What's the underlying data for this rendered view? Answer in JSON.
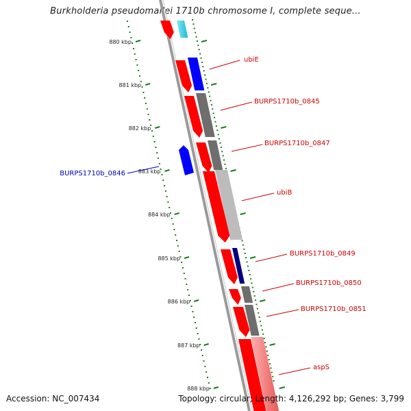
{
  "title": "Burkholderia pseudomallei 1710b chromosome I, complete seque...",
  "accession": "Accession: NC_007434",
  "summary": "Topology: circular; Length: 4,126,292 bp; Genes: 3,799",
  "colors": {
    "forward": "#ff0000",
    "reverse": "#0000ff",
    "label_forward": "#cc0000",
    "label_reverse": "#0000aa",
    "ticks": "#1a7a1a",
    "backbone": "#8c8c8c"
  },
  "ticks": [
    {
      "label": "880 kbp"
    },
    {
      "label": "881 kbp"
    },
    {
      "label": "882 kbp"
    },
    {
      "label": "883 kbp"
    },
    {
      "label": "884 kbp"
    },
    {
      "label": "885 kbp"
    },
    {
      "label": "886 kbp"
    },
    {
      "label": "887 kbp"
    },
    {
      "label": "888 kbp"
    }
  ],
  "genes": [
    {
      "label": "ubiE",
      "strand": "forward"
    },
    {
      "label": "BURPS1710b_0845",
      "strand": "forward"
    },
    {
      "label": "BURPS1710b_0847",
      "strand": "forward"
    },
    {
      "label": "BURPS1710b_0846",
      "strand": "reverse"
    },
    {
      "label": "ubiB",
      "strand": "forward"
    },
    {
      "label": "BURPS1710b_0849",
      "strand": "forward"
    },
    {
      "label": "BURPS1710b_0850",
      "strand": "forward"
    },
    {
      "label": "BURPS1710b_0851",
      "strand": "forward"
    },
    {
      "label": "aspS",
      "strand": "forward"
    }
  ]
}
